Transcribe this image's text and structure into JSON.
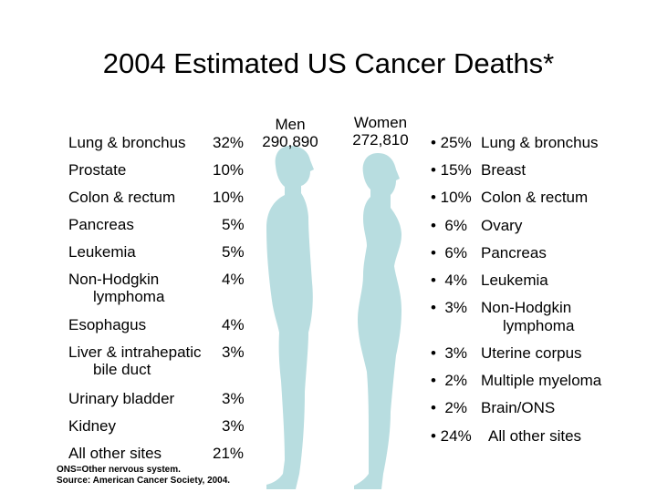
{
  "title": "2004 Estimated US Cancer Deaths*",
  "men": {
    "label": "Men",
    "total": "290,890"
  },
  "women": {
    "label": "Women",
    "total": "272,810"
  },
  "men_sites": [
    {
      "site": "Lung & bronchus",
      "site2": "",
      "pct": "32%"
    },
    {
      "site": "Prostate",
      "site2": "",
      "pct": "10%"
    },
    {
      "site": "Colon & rectum",
      "site2": "",
      "pct": "10%"
    },
    {
      "site": "Pancreas",
      "site2": "",
      "pct": "5%"
    },
    {
      "site": "Leukemia",
      "site2": "",
      "pct": "5%"
    },
    {
      "site": "Non-Hodgkin",
      "site2": "lymphoma",
      "pct": "4%"
    },
    {
      "site": "Esophagus",
      "site2": "",
      "pct": "4%"
    },
    {
      "site": "Liver & intrahepatic",
      "site2": "bile duct",
      "pct": "3%"
    },
    {
      "site": "Urinary bladder",
      "site2": "",
      "pct": "3%"
    },
    {
      "site": "Kidney",
      "site2": "",
      "pct": "3%"
    },
    {
      "site": "All other sites",
      "site2": "",
      "pct": "21%"
    }
  ],
  "women_sites": [
    {
      "pct": "• 25%",
      "site": "Lung & bronchus",
      "site2": ""
    },
    {
      "pct": "• 15%",
      "site": "Breast",
      "site2": ""
    },
    {
      "pct": "• 10%",
      "site": "Colon & rectum",
      "site2": ""
    },
    {
      "pct": "•  6%",
      "site": "Ovary",
      "site2": ""
    },
    {
      "pct": "•  6%",
      "site": "Pancreas",
      "site2": ""
    },
    {
      "pct": "•  4%",
      "site": "Leukemia",
      "site2": ""
    },
    {
      "pct": "•  3%",
      "site": "Non-Hodgkin",
      "site2": "lymphoma"
    },
    {
      "pct": "•  3%",
      "site": "Uterine corpus",
      "site2": ""
    },
    {
      "pct": "•  2%",
      "site": "Multiple myeloma",
      "site2": ""
    },
    {
      "pct": "•  2%",
      "site": "Brain/ONS",
      "site2": ""
    },
    {
      "pct": "• 24%",
      "site": "All other sites",
      "site2": ""
    }
  ],
  "footnote_1": "ONS=Other nervous system.",
  "footnote_2": "Source: American Cancer Society, 2004.",
  "colors": {
    "silhouette": "#b8dde0"
  }
}
